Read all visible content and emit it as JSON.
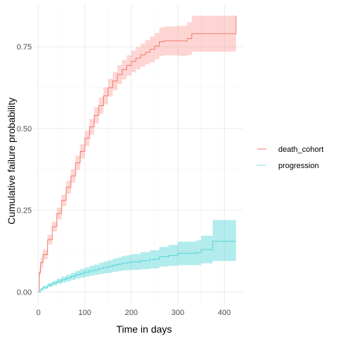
{
  "chart_data": {
    "type": "line",
    "step": true,
    "xlabel": "Time in days",
    "ylabel": "Cumulative failure probability",
    "xlim": [
      -8,
      440
    ],
    "ylim": [
      -0.04,
      0.88
    ],
    "xticks": [
      0,
      100,
      200,
      300,
      400
    ],
    "xtick_labels": [
      "0",
      "100",
      "200",
      "300",
      "400"
    ],
    "yticks": [
      0,
      0.25,
      0.5,
      0.75
    ],
    "ytick_labels": [
      "0.00",
      "0.25",
      "0.50",
      "0.75"
    ],
    "grid": true,
    "legend_position": "right",
    "series": [
      {
        "name": "death_cohort",
        "color": "#f8766d",
        "fill": "#f8766d",
        "linetype": "solid",
        "points": [
          {
            "x": 0,
            "y": 0.0,
            "lo": 0.0,
            "hi": 0.0
          },
          {
            "x": 2,
            "y": 0.06,
            "lo": 0.05,
            "hi": 0.075
          },
          {
            "x": 5,
            "y": 0.09,
            "lo": 0.075,
            "hi": 0.105
          },
          {
            "x": 10,
            "y": 0.115,
            "lo": 0.1,
            "hi": 0.13
          },
          {
            "x": 20,
            "y": 0.16,
            "lo": 0.145,
            "hi": 0.175
          },
          {
            "x": 30,
            "y": 0.2,
            "lo": 0.185,
            "hi": 0.215
          },
          {
            "x": 40,
            "y": 0.24,
            "lo": 0.222,
            "hi": 0.258
          },
          {
            "x": 50,
            "y": 0.28,
            "lo": 0.262,
            "hi": 0.298
          },
          {
            "x": 60,
            "y": 0.32,
            "lo": 0.3,
            "hi": 0.34
          },
          {
            "x": 70,
            "y": 0.355,
            "lo": 0.335,
            "hi": 0.375
          },
          {
            "x": 80,
            "y": 0.395,
            "lo": 0.373,
            "hi": 0.417
          },
          {
            "x": 90,
            "y": 0.43,
            "lo": 0.408,
            "hi": 0.452
          },
          {
            "x": 100,
            "y": 0.47,
            "lo": 0.447,
            "hi": 0.493
          },
          {
            "x": 110,
            "y": 0.505,
            "lo": 0.481,
            "hi": 0.529
          },
          {
            "x": 120,
            "y": 0.54,
            "lo": 0.515,
            "hi": 0.565
          },
          {
            "x": 130,
            "y": 0.57,
            "lo": 0.545,
            "hi": 0.595
          },
          {
            "x": 140,
            "y": 0.6,
            "lo": 0.574,
            "hi": 0.626
          },
          {
            "x": 150,
            "y": 0.625,
            "lo": 0.598,
            "hi": 0.652
          },
          {
            "x": 160,
            "y": 0.645,
            "lo": 0.617,
            "hi": 0.673
          },
          {
            "x": 170,
            "y": 0.665,
            "lo": 0.636,
            "hi": 0.694
          },
          {
            "x": 180,
            "y": 0.68,
            "lo": 0.65,
            "hi": 0.71
          },
          {
            "x": 190,
            "y": 0.693,
            "lo": 0.662,
            "hi": 0.724
          },
          {
            "x": 200,
            "y": 0.705,
            "lo": 0.672,
            "hi": 0.738
          },
          {
            "x": 210,
            "y": 0.715,
            "lo": 0.681,
            "hi": 0.749
          },
          {
            "x": 220,
            "y": 0.725,
            "lo": 0.69,
            "hi": 0.76
          },
          {
            "x": 230,
            "y": 0.733,
            "lo": 0.696,
            "hi": 0.77
          },
          {
            "x": 240,
            "y": 0.742,
            "lo": 0.703,
            "hi": 0.781
          },
          {
            "x": 250,
            "y": 0.752,
            "lo": 0.712,
            "hi": 0.792
          },
          {
            "x": 260,
            "y": 0.765,
            "lo": 0.722,
            "hi": 0.808
          },
          {
            "x": 270,
            "y": 0.768,
            "lo": 0.724,
            "hi": 0.812
          },
          {
            "x": 300,
            "y": 0.768,
            "lo": 0.722,
            "hi": 0.814
          },
          {
            "x": 320,
            "y": 0.775,
            "lo": 0.725,
            "hi": 0.825
          },
          {
            "x": 330,
            "y": 0.79,
            "lo": 0.735,
            "hi": 0.845
          },
          {
            "x": 380,
            "y": 0.79,
            "lo": 0.735,
            "hi": 0.845
          },
          {
            "x": 423,
            "y": 0.79,
            "lo": 0.735,
            "hi": 0.845
          },
          {
            "x": 425,
            "y": 0.845,
            "lo": 0.735,
            "hi": 0.845
          }
        ]
      },
      {
        "name": "progression",
        "color": "#00bfc4",
        "fill": "#00bfc4",
        "linetype": "dotted",
        "points": [
          {
            "x": 0,
            "y": 0.0,
            "lo": 0.0,
            "hi": 0.0
          },
          {
            "x": 5,
            "y": 0.008,
            "lo": 0.004,
            "hi": 0.012
          },
          {
            "x": 10,
            "y": 0.014,
            "lo": 0.009,
            "hi": 0.019
          },
          {
            "x": 20,
            "y": 0.021,
            "lo": 0.015,
            "hi": 0.027
          },
          {
            "x": 30,
            "y": 0.027,
            "lo": 0.02,
            "hi": 0.034
          },
          {
            "x": 40,
            "y": 0.033,
            "lo": 0.025,
            "hi": 0.041
          },
          {
            "x": 50,
            "y": 0.038,
            "lo": 0.029,
            "hi": 0.047
          },
          {
            "x": 60,
            "y": 0.043,
            "lo": 0.033,
            "hi": 0.053
          },
          {
            "x": 70,
            "y": 0.048,
            "lo": 0.037,
            "hi": 0.059
          },
          {
            "x": 80,
            "y": 0.053,
            "lo": 0.041,
            "hi": 0.065
          },
          {
            "x": 90,
            "y": 0.057,
            "lo": 0.044,
            "hi": 0.07
          },
          {
            "x": 100,
            "y": 0.061,
            "lo": 0.047,
            "hi": 0.075
          },
          {
            "x": 110,
            "y": 0.065,
            "lo": 0.05,
            "hi": 0.08
          },
          {
            "x": 120,
            "y": 0.068,
            "lo": 0.052,
            "hi": 0.084
          },
          {
            "x": 130,
            "y": 0.072,
            "lo": 0.055,
            "hi": 0.089
          },
          {
            "x": 140,
            "y": 0.075,
            "lo": 0.057,
            "hi": 0.093
          },
          {
            "x": 150,
            "y": 0.078,
            "lo": 0.059,
            "hi": 0.097
          },
          {
            "x": 160,
            "y": 0.082,
            "lo": 0.062,
            "hi": 0.102
          },
          {
            "x": 170,
            "y": 0.085,
            "lo": 0.064,
            "hi": 0.106
          },
          {
            "x": 180,
            "y": 0.088,
            "lo": 0.066,
            "hi": 0.11
          },
          {
            "x": 190,
            "y": 0.09,
            "lo": 0.067,
            "hi": 0.113
          },
          {
            "x": 200,
            "y": 0.092,
            "lo": 0.068,
            "hi": 0.116
          },
          {
            "x": 220,
            "y": 0.096,
            "lo": 0.07,
            "hi": 0.122
          },
          {
            "x": 240,
            "y": 0.1,
            "lo": 0.072,
            "hi": 0.128
          },
          {
            "x": 260,
            "y": 0.108,
            "lo": 0.078,
            "hi": 0.138
          },
          {
            "x": 280,
            "y": 0.112,
            "lo": 0.08,
            "hi": 0.144
          },
          {
            "x": 300,
            "y": 0.118,
            "lo": 0.082,
            "hi": 0.154
          },
          {
            "x": 320,
            "y": 0.118,
            "lo": 0.082,
            "hi": 0.154
          },
          {
            "x": 330,
            "y": 0.118,
            "lo": 0.082,
            "hi": 0.154
          },
          {
            "x": 340,
            "y": 0.12,
            "lo": 0.082,
            "hi": 0.158
          },
          {
            "x": 350,
            "y": 0.13,
            "lo": 0.088,
            "hi": 0.172
          },
          {
            "x": 370,
            "y": 0.13,
            "lo": 0.088,
            "hi": 0.172
          },
          {
            "x": 375,
            "y": 0.155,
            "lo": 0.095,
            "hi": 0.22
          },
          {
            "x": 425,
            "y": 0.155,
            "lo": 0.095,
            "hi": 0.22
          }
        ]
      }
    ]
  }
}
